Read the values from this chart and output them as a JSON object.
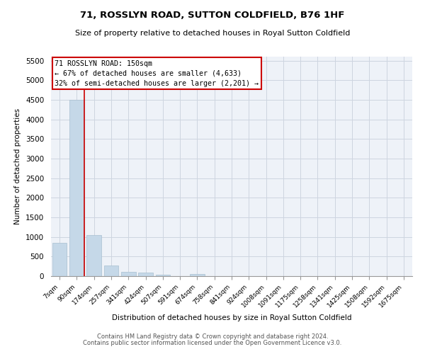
{
  "title": "71, ROSSLYN ROAD, SUTTON COLDFIELD, B76 1HF",
  "subtitle": "Size of property relative to detached houses in Royal Sutton Coldfield",
  "xlabel": "Distribution of detached houses by size in Royal Sutton Coldfield",
  "ylabel": "Number of detached properties",
  "footer1": "Contains HM Land Registry data © Crown copyright and database right 2024.",
  "footer2": "Contains public sector information licensed under the Open Government Licence v3.0.",
  "annotation_title": "71 ROSSLYN ROAD: 150sqm",
  "annotation_line1": "← 67% of detached houses are smaller (4,633)",
  "annotation_line2": "32% of semi-detached houses are larger (2,201) →",
  "bar_color": "#c5d8e8",
  "bar_edge_color": "#a8bfd0",
  "vline_color": "#cc0000",
  "annotation_box_color": "#cc0000",
  "grid_color": "#cdd5e0",
  "bg_color": "#eef2f8",
  "categories": [
    "7sqm",
    "90sqm",
    "174sqm",
    "257sqm",
    "341sqm",
    "424sqm",
    "507sqm",
    "591sqm",
    "674sqm",
    "758sqm",
    "841sqm",
    "924sqm",
    "1008sqm",
    "1091sqm",
    "1175sqm",
    "1258sqm",
    "1341sqm",
    "1425sqm",
    "1508sqm",
    "1592sqm",
    "1675sqm"
  ],
  "values": [
    850,
    4500,
    1050,
    280,
    100,
    85,
    40,
    0,
    60,
    0,
    0,
    0,
    0,
    0,
    0,
    0,
    0,
    0,
    0,
    0,
    0
  ],
  "ylim": [
    0,
    5600
  ],
  "yticks": [
    0,
    500,
    1000,
    1500,
    2000,
    2500,
    3000,
    3500,
    4000,
    4500,
    5000,
    5500
  ],
  "vline_x": 1.43,
  "figsize": [
    6.0,
    5.0
  ],
  "dpi": 100
}
